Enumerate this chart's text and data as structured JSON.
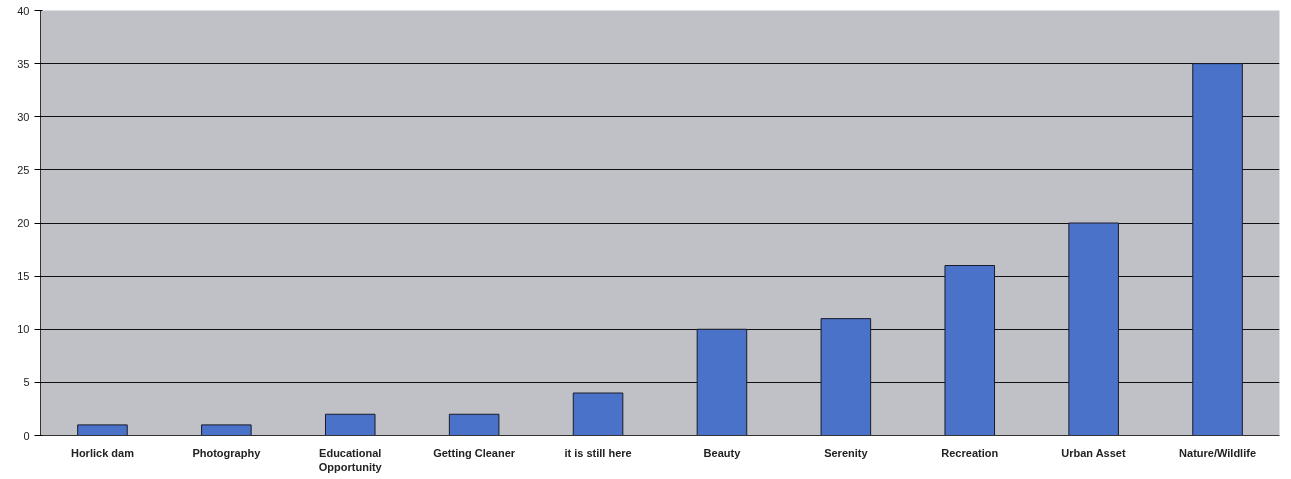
{
  "chart_data": {
    "type": "bar",
    "categories": [
      "Horlick dam",
      "Photography",
      "Educational Opportunity",
      "Getting Cleaner",
      "it is still here",
      "Beauty",
      "Serenity",
      "Recreation",
      "Urban Asset",
      "Nature/Wildlife"
    ],
    "values": [
      1,
      1,
      2,
      2,
      4,
      10,
      11,
      16,
      20,
      35
    ],
    "color": "#4a72c8",
    "ylim": [
      0,
      40
    ],
    "yticks": [
      0,
      5,
      10,
      15,
      20,
      25,
      30,
      35,
      40
    ],
    "grid": "y"
  }
}
